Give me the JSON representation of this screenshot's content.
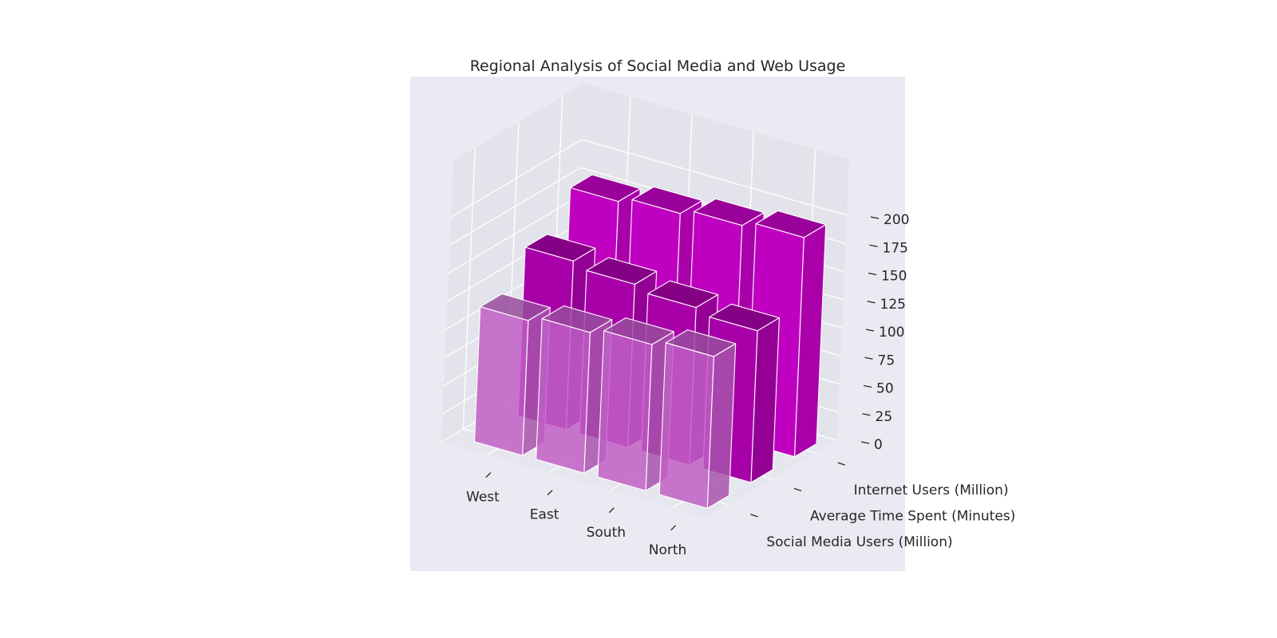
{
  "chart_data": {
    "type": "bar3d",
    "title": "Regional Analysis of Social Media and Web Usage",
    "regions": [
      "West",
      "East",
      "South",
      "North"
    ],
    "series": [
      {
        "name": "Social Media Users (Million)",
        "values": [
          120,
          125,
          130,
          135
        ],
        "color": "#bf5fc4"
      },
      {
        "name": "Average Time Spent (Minutes)",
        "values": [
          150,
          145,
          140,
          135
        ],
        "color": "#a800a8"
      },
      {
        "name": "Internet Users (Million)",
        "values": [
          180,
          185,
          190,
          195
        ],
        "color": "#c000c0"
      }
    ],
    "zticks": [
      0,
      25,
      50,
      75,
      100,
      125,
      150,
      175,
      200
    ],
    "zlim": [
      0,
      200
    ],
    "grid": true
  }
}
